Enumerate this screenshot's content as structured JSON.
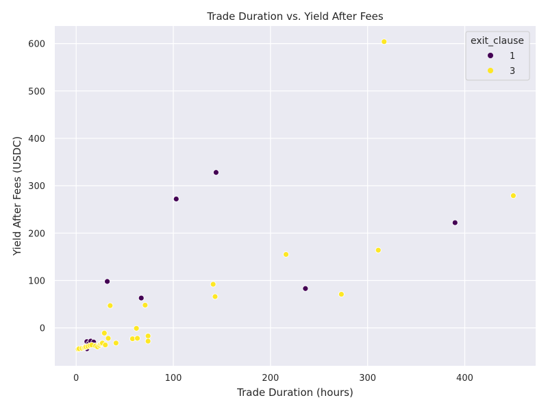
{
  "chart_data": {
    "type": "scatter",
    "title": "Trade Duration vs. Yield After Fees",
    "xlabel": "Trade Duration (hours)",
    "ylabel": "Yield After Fees (USDC)",
    "xlim": [
      -22,
      473
    ],
    "ylim": [
      -80,
      637
    ],
    "xticks": [
      0,
      100,
      200,
      300,
      400
    ],
    "yticks": [
      0,
      100,
      200,
      300,
      400,
      500,
      600
    ],
    "xtick_labels": [
      "0",
      "100",
      "200",
      "300",
      "400"
    ],
    "ytick_labels": [
      "0",
      "100",
      "200",
      "300",
      "400",
      "500",
      "600"
    ],
    "grid": true,
    "legend": {
      "title": "exit_clause",
      "placement": "top-right",
      "entries": [
        "1",
        "3"
      ]
    },
    "colors": {
      "1": "#440154",
      "3": "#fde725",
      "plot_background": "#eaeaf2",
      "grid": "#ffffff"
    },
    "series": [
      {
        "name": "1",
        "points": [
          [
            11,
            -29
          ],
          [
            11,
            -44
          ],
          [
            12,
            -38
          ],
          [
            13,
            -33
          ],
          [
            15,
            -28
          ],
          [
            17,
            -35
          ],
          [
            18,
            -30
          ],
          [
            19,
            -37
          ],
          [
            32,
            98
          ],
          [
            67,
            63
          ],
          [
            103,
            272
          ],
          [
            144,
            328
          ],
          [
            236,
            83
          ],
          [
            390,
            222
          ]
        ]
      },
      {
        "name": "3",
        "points": [
          [
            2,
            -45
          ],
          [
            3,
            -44
          ],
          [
            6,
            -43
          ],
          [
            8,
            -42
          ],
          [
            9,
            -41
          ],
          [
            10,
            -40
          ],
          [
            12,
            -39
          ],
          [
            14,
            -37
          ],
          [
            16,
            -36
          ],
          [
            20,
            -38
          ],
          [
            22,
            -40
          ],
          [
            24,
            -37
          ],
          [
            25,
            -34
          ],
          [
            26,
            -33
          ],
          [
            27,
            -32
          ],
          [
            29,
            -11
          ],
          [
            30,
            -36
          ],
          [
            33,
            -22
          ],
          [
            35,
            47
          ],
          [
            41,
            -32
          ],
          [
            58,
            -23
          ],
          [
            62,
            -1
          ],
          [
            63,
            -22
          ],
          [
            71,
            48
          ],
          [
            74,
            -17
          ],
          [
            74,
            -28
          ],
          [
            141,
            92
          ],
          [
            143,
            66
          ],
          [
            216,
            155
          ],
          [
            273,
            71
          ],
          [
            311,
            164
          ],
          [
            317,
            604
          ],
          [
            450,
            279
          ]
        ]
      }
    ]
  }
}
